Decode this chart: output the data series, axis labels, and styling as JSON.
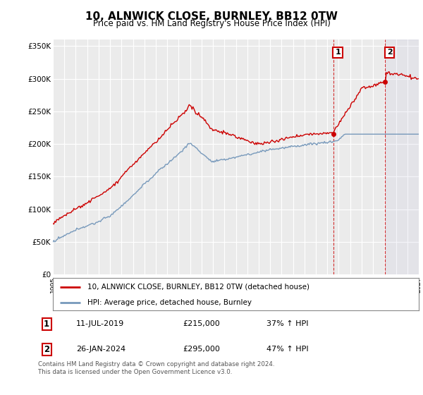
{
  "title": "10, ALNWICK CLOSE, BURNLEY, BB12 0TW",
  "subtitle": "Price paid vs. HM Land Registry's House Price Index (HPI)",
  "title_fontsize": 11,
  "subtitle_fontsize": 8.5,
  "ylabel_ticks": [
    "£0",
    "£50K",
    "£100K",
    "£150K",
    "£200K",
    "£250K",
    "£300K",
    "£350K"
  ],
  "ylabel_values": [
    0,
    50000,
    100000,
    150000,
    200000,
    250000,
    300000,
    350000
  ],
  "ylim": [
    0,
    360000
  ],
  "background_color": "#ffffff",
  "plot_bg_color": "#ebebeb",
  "grid_color": "#ffffff",
  "line1_color": "#cc0000",
  "line2_color": "#7799bb",
  "annotation1_label": "1",
  "annotation2_label": "2",
  "legend_line1": "10, ALNWICK CLOSE, BURNLEY, BB12 0TW (detached house)",
  "legend_line2": "HPI: Average price, detached house, Burnley",
  "table_row1": [
    "1",
    "11-JUL-2019",
    "£215,000",
    "37% ↑ HPI"
  ],
  "table_row2": [
    "2",
    "26-JAN-2024",
    "£295,000",
    "47% ↑ HPI"
  ],
  "footer": "Contains HM Land Registry data © Crown copyright and database right 2024.\nThis data is licensed under the Open Government Licence v3.0.",
  "xmin": 1995,
  "xmax": 2027,
  "sale1_x": 2019.527,
  "sale1_y": 215000,
  "sale2_x": 2024.069,
  "sale2_y": 295000
}
